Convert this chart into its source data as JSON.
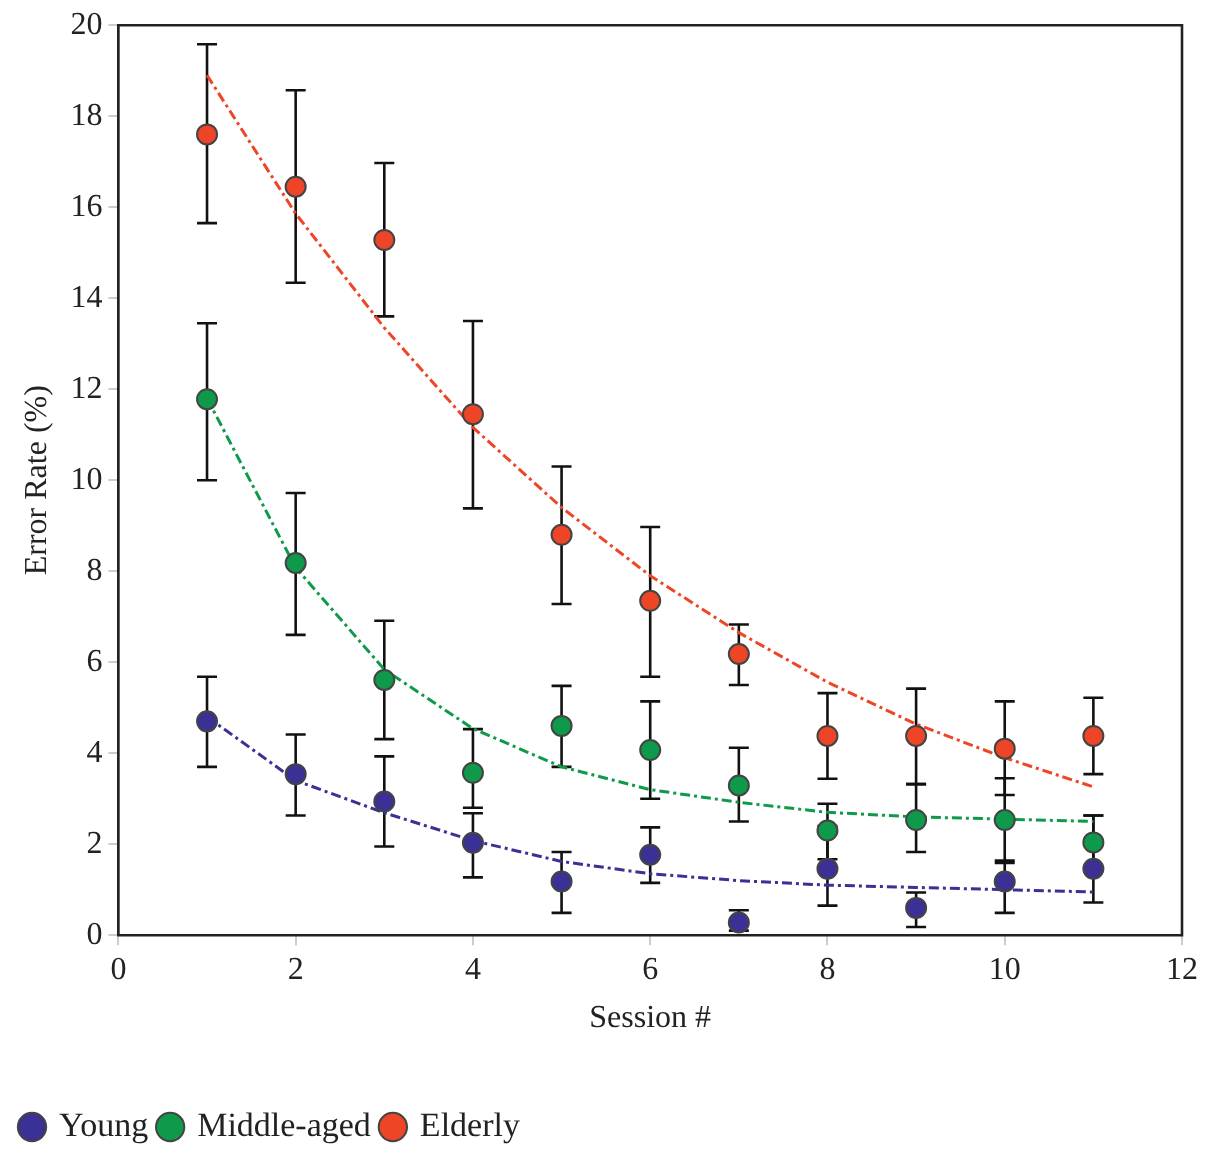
{
  "chart_data": {
    "type": "scatter",
    "xlabel": "Session #",
    "ylabel": "Error Rate (%)",
    "xlim": [
      0,
      12
    ],
    "xticks": [
      0,
      2,
      4,
      6,
      8,
      10,
      12
    ],
    "ylim": [
      0,
      20
    ],
    "yticks": [
      0,
      2,
      4,
      6,
      8,
      10,
      12,
      14,
      16,
      18,
      20
    ],
    "grid": false,
    "legend": "bottom left",
    "marker": "circle",
    "x": [
      1,
      2,
      3,
      4,
      5,
      6,
      7,
      8,
      9,
      10,
      11
    ],
    "series": [
      {
        "name": "Young",
        "color": "#3a3096",
        "values": [
          4.7,
          3.54,
          2.94,
          2.03,
          1.18,
          1.77,
          0.28,
          1.46,
          0.6,
          1.18,
          1.46
        ],
        "errors": [
          [
            3.7,
            5.68
          ],
          [
            2.63,
            4.41
          ],
          [
            1.95,
            3.93
          ],
          [
            1.27,
            2.68
          ],
          [
            0.49,
            1.83
          ],
          [
            1.15,
            2.37
          ],
          [
            0.1,
            0.55
          ],
          [
            0.65,
            2.4
          ],
          [
            0.18,
            0.94
          ],
          [
            0.49,
            1.64
          ],
          [
            0.72,
            2.63
          ]
        ]
      },
      {
        "name": "Middle-aged",
        "color": "#0e9a4a",
        "values": [
          11.78,
          8.18,
          5.61,
          3.57,
          4.6,
          4.07,
          3.29,
          2.3,
          2.53,
          2.53,
          2.04
        ],
        "errors": [
          [
            10.0,
            13.45
          ],
          [
            6.6,
            9.72
          ],
          [
            4.31,
            6.91
          ],
          [
            2.8,
            4.53
          ],
          [
            3.7,
            5.48
          ],
          [
            3.0,
            5.14
          ],
          [
            2.5,
            4.12
          ],
          [
            1.67,
            2.89
          ],
          [
            1.83,
            3.32
          ],
          [
            1.59,
            3.45
          ],
          [
            1.5,
            2.63
          ]
        ]
      },
      {
        "name": "Elderly",
        "color": "#ee4526",
        "values": [
          17.6,
          16.45,
          15.28,
          11.45,
          8.8,
          7.35,
          6.18,
          4.38,
          4.38,
          4.1,
          4.38
        ],
        "errors": [
          [
            15.65,
            19.58
          ],
          [
            14.34,
            18.57
          ],
          [
            13.6,
            16.97
          ],
          [
            9.38,
            13.5
          ],
          [
            7.28,
            10.3
          ],
          [
            5.68,
            8.97
          ],
          [
            5.5,
            6.83
          ],
          [
            3.44,
            5.32
          ],
          [
            3.32,
            5.42
          ],
          [
            3.08,
            5.14
          ],
          [
            3.54,
            5.22
          ]
        ]
      },
      {
        "type": "line",
        "color": "#3a3096",
        "line_style": "dashed",
        "marker": "none",
        "values": [
          4.8,
          3.4,
          2.69,
          2.08,
          1.62,
          1.35,
          1.2,
          1.1,
          1.05,
          1.0,
          0.95
        ]
      },
      {
        "type": "line",
        "color": "#0e9a4a",
        "line_style": "dashed",
        "marker": "none",
        "values": [
          11.8,
          8.08,
          5.84,
          4.54,
          3.7,
          3.2,
          2.92,
          2.7,
          2.6,
          2.55,
          2.5
        ]
      },
      {
        "type": "line",
        "color": "#ee4526",
        "line_style": "dashed",
        "marker": "none",
        "values": [
          18.9,
          15.86,
          13.35,
          11.16,
          9.4,
          7.9,
          6.65,
          5.56,
          4.64,
          3.9,
          3.26
        ]
      }
    ]
  }
}
